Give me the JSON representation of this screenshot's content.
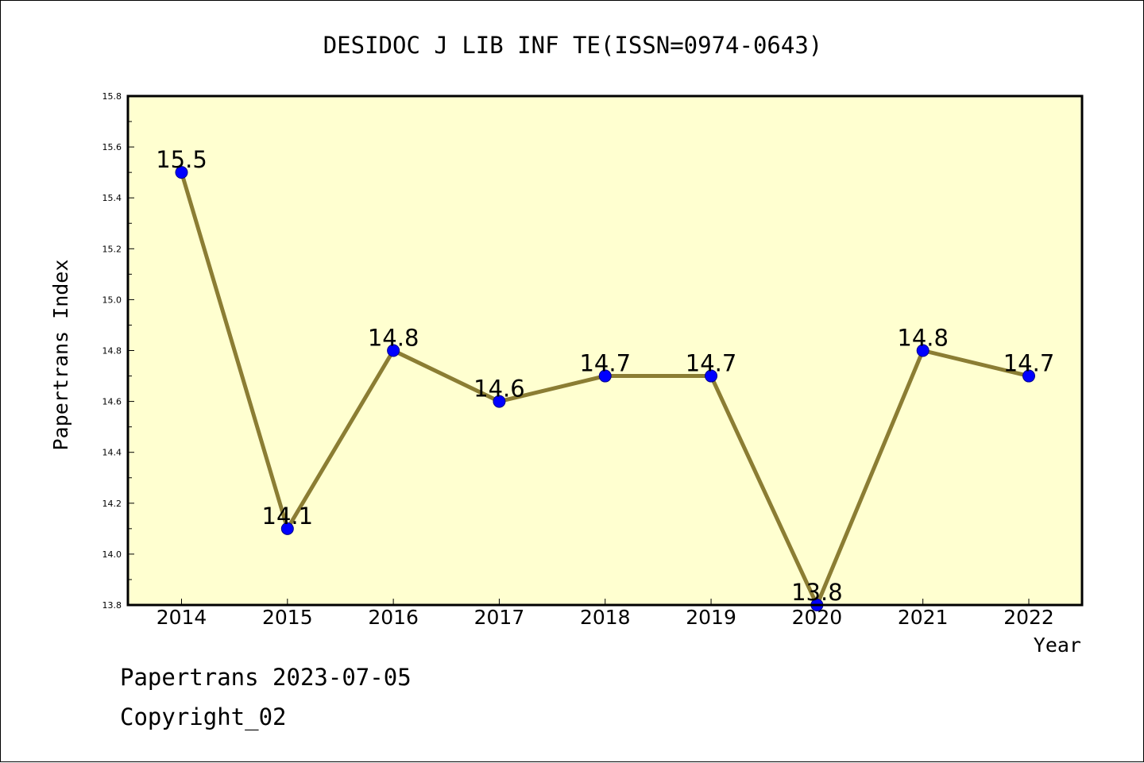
{
  "chart_data": {
    "type": "line",
    "title": "DESIDOC J LIB INF TE(ISSN=0974-0643)",
    "xlabel": "Year",
    "ylabel": "Papertrans Index",
    "categories": [
      "2014",
      "2015",
      "2016",
      "2017",
      "2018",
      "2019",
      "2020",
      "2021",
      "2022"
    ],
    "values": [
      15.5,
      14.1,
      14.8,
      14.6,
      14.7,
      14.7,
      13.8,
      14.8,
      14.7
    ],
    "data_labels": [
      "15.5",
      "14.1",
      "14.8",
      "14.6",
      "14.7",
      "14.7",
      "13.8",
      "14.8",
      "14.7"
    ],
    "ylim": [
      13.8,
      15.8
    ],
    "yticks": [
      "13.8",
      "14.0",
      "14.2",
      "14.4",
      "14.6",
      "14.8",
      "15.0",
      "15.2",
      "15.4",
      "15.6",
      "15.8"
    ],
    "grid": false,
    "legend": "none",
    "colors": {
      "plot_background": "#ffffd0",
      "line": "#8b7d33",
      "marker_fill": "#0000ff",
      "marker_edge": "#00008b",
      "axes": "#000000"
    }
  },
  "footer": {
    "date_text": "Papertrans 2023-07-05",
    "copyright_text": "Copyright_02"
  }
}
